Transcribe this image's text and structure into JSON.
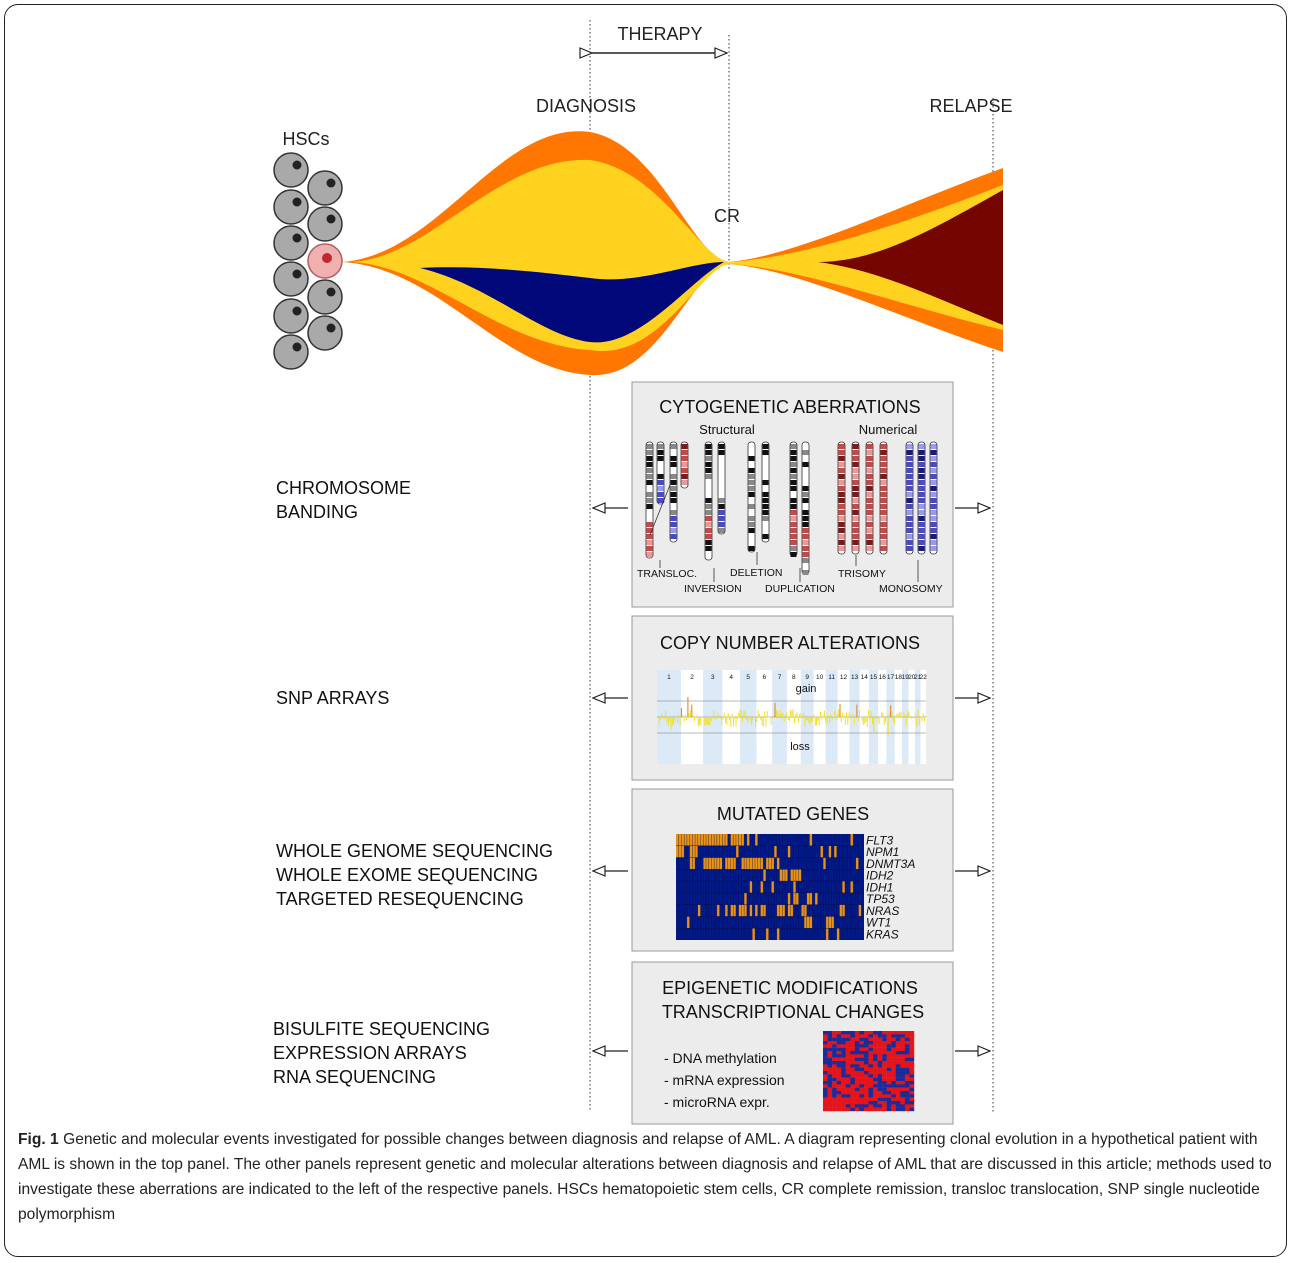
{
  "header": {
    "therapy": "THERAPY",
    "diagnosis": "DIAGNOSIS",
    "relapse": "RELAPSE",
    "hscs": "HSCs",
    "cr": "CR"
  },
  "methods": {
    "chromosome_banding": [
      "CHROMOSOME",
      "BANDING"
    ],
    "snp_arrays": [
      "SNP ARRAYS"
    ],
    "sequencing": [
      "WHOLE GENOME SEQUENCING",
      "WHOLE EXOME SEQUENCING",
      "TARGETED RESEQUENCING"
    ],
    "epigenetic_methods": [
      "BISULFITE SEQUENCING",
      "EXPRESSION ARRAYS",
      "RNA SEQUENCING"
    ]
  },
  "panel_cytogenetic": {
    "title": "CYTOGENETIC ABERRATIONS",
    "structural": "Structural",
    "numerical": "Numerical",
    "labels": [
      "TRANSLOC.",
      "INVERSION",
      "DELETION",
      "DUPLICATION",
      "TRISOMY",
      "MONOSOMY"
    ]
  },
  "panel_copy_number": {
    "title": "COPY NUMBER ALTERATIONS",
    "gain": "gain",
    "loss": "loss",
    "chromosomes": [
      "1",
      "2",
      "3",
      "4",
      "5",
      "6",
      "7",
      "8",
      "9",
      "10",
      "11",
      "12",
      "13",
      "14",
      "15",
      "16",
      "17",
      "18",
      "19",
      "20",
      "21",
      "22"
    ]
  },
  "panel_mutated": {
    "title": "MUTATED GENES",
    "genes": [
      "FLT3",
      "NPM1",
      "DNMT3A",
      "IDH2",
      "IDH1",
      "TP53",
      "NRAS",
      "WT1",
      "KRAS"
    ]
  },
  "panel_epigenetic": {
    "title_lines": [
      "EPIGENETIC MODIFICATIONS",
      "TRANSCRIPTIONAL CHANGES"
    ],
    "items": [
      "- DNA methylation",
      "- mRNA expression",
      "- microRNA expr."
    ]
  },
  "colors": {
    "orange": "#ff7700",
    "yellow": "#ffd21f",
    "navy": "#00087a",
    "maroon": "#750500",
    "cell": "#a9a9a9",
    "panel_bg": "#ececec",
    "mut_orange": "#e79218",
    "mut_blue": "#001a8a"
  },
  "caption": {
    "label": "Fig. 1",
    "text": "Genetic and molecular events investigated for possible changes between diagnosis and relapse of AML. A diagram representing clonal evolution in a hypothetical patient with AML is shown in the top panel. The other panels represent genetic and molecular alterations between diagnosis and relapse of AML that are discussed in this article; methods used to investigate these aberrations are indicated to the left of the respective panels. HSCs hematopoietic stem cells, CR complete remission, transloc translocation, SNP single nucleotide polymorphism"
  }
}
